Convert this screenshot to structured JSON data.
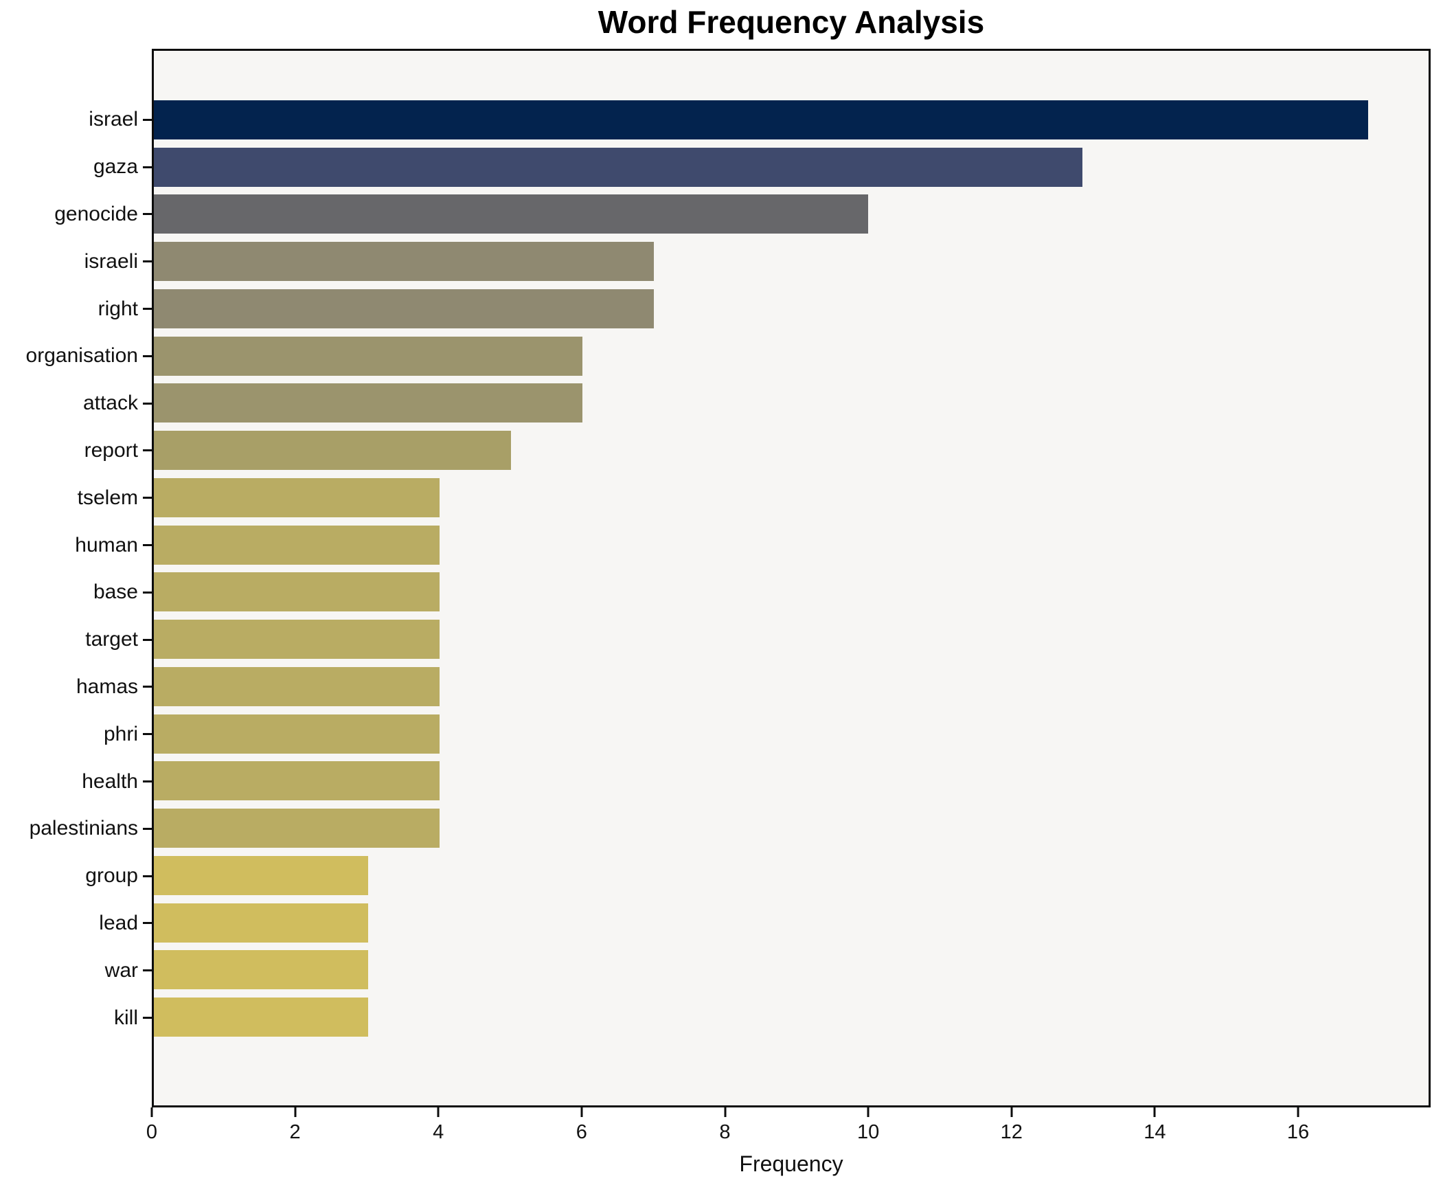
{
  "chart_data": {
    "type": "bar",
    "orientation": "horizontal",
    "title": "Word Frequency Analysis",
    "xlabel": "Frequency",
    "ylabel": "",
    "categories": [
      "israel",
      "gaza",
      "genocide",
      "israeli",
      "right",
      "organisation",
      "attack",
      "report",
      "tselem",
      "human",
      "base",
      "target",
      "hamas",
      "phri",
      "health",
      "palestinians",
      "group",
      "lead",
      "war",
      "kill"
    ],
    "values": [
      17,
      13,
      10,
      7,
      7,
      6,
      6,
      5,
      4,
      4,
      4,
      4,
      4,
      4,
      4,
      4,
      3,
      3,
      3,
      3
    ],
    "bar_colors": [
      "#03234e",
      "#3f4a6d",
      "#67676a",
      "#8f8971",
      "#8f8971",
      "#9b946d",
      "#9b946d",
      "#a89f67",
      "#b9ac63",
      "#b9ac63",
      "#b9ac63",
      "#b9ac63",
      "#b9ac63",
      "#b9ac63",
      "#b9ac63",
      "#b9ac63",
      "#d0bd5e",
      "#d0bd5e",
      "#d0bd5e",
      "#d0bd5e"
    ],
    "xlim": [
      0,
      17.85
    ],
    "xticks": [
      0,
      2,
      4,
      6,
      8,
      10,
      12,
      14,
      16
    ],
    "grid": false,
    "legend": null,
    "plot_background": "#f7f6f4",
    "figure_background": "#ffffff",
    "spine_color": "#0d0d0d"
  }
}
